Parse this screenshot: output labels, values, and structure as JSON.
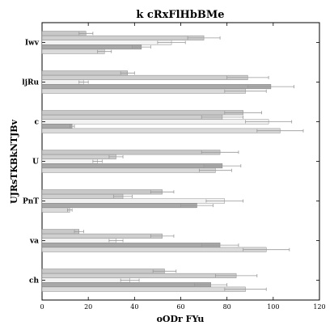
{
  "chart_data": {
    "type": "bar",
    "orientation": "horizontal",
    "title": "k cRxFlHbBMe",
    "xlabel": "oODr FYu",
    "ylabel": "UJRsTKBkNTJBv",
    "xlim": [
      0,
      120
    ],
    "xticks": [
      0,
      20,
      40,
      60,
      80,
      100,
      120
    ],
    "categories": [
      "Iwv",
      "ljRu",
      "c",
      "U",
      "PnT",
      "va",
      "ch"
    ],
    "grid": false,
    "series": [
      {
        "color": "#c8c8c8",
        "values": [
          19,
          37,
          87,
          77,
          52,
          16,
          53
        ],
        "errors": [
          3,
          3,
          8,
          8,
          5,
          2,
          5
        ]
      },
      {
        "color": "#cfcfcf",
        "values": [
          70,
          89,
          78,
          32,
          35,
          52,
          84
        ],
        "errors": [
          7,
          9,
          9,
          3,
          4,
          5,
          9
        ]
      },
      {
        "color": "#f2f2f2",
        "values": [
          56,
          18,
          98,
          24,
          79,
          32,
          38
        ],
        "errors": [
          6,
          2,
          10,
          2,
          8,
          3,
          4
        ]
      },
      {
        "color": "#a8a8a8",
        "values": [
          43,
          99,
          13,
          78,
          67,
          77,
          73
        ],
        "errors": [
          4,
          10,
          1,
          8,
          7,
          8,
          7
        ]
      },
      {
        "color": "#dadada",
        "values": [
          27,
          88,
          103,
          75,
          12,
          97,
          88
        ],
        "errors": [
          3,
          9,
          10,
          7,
          1,
          10,
          9
        ]
      }
    ]
  }
}
